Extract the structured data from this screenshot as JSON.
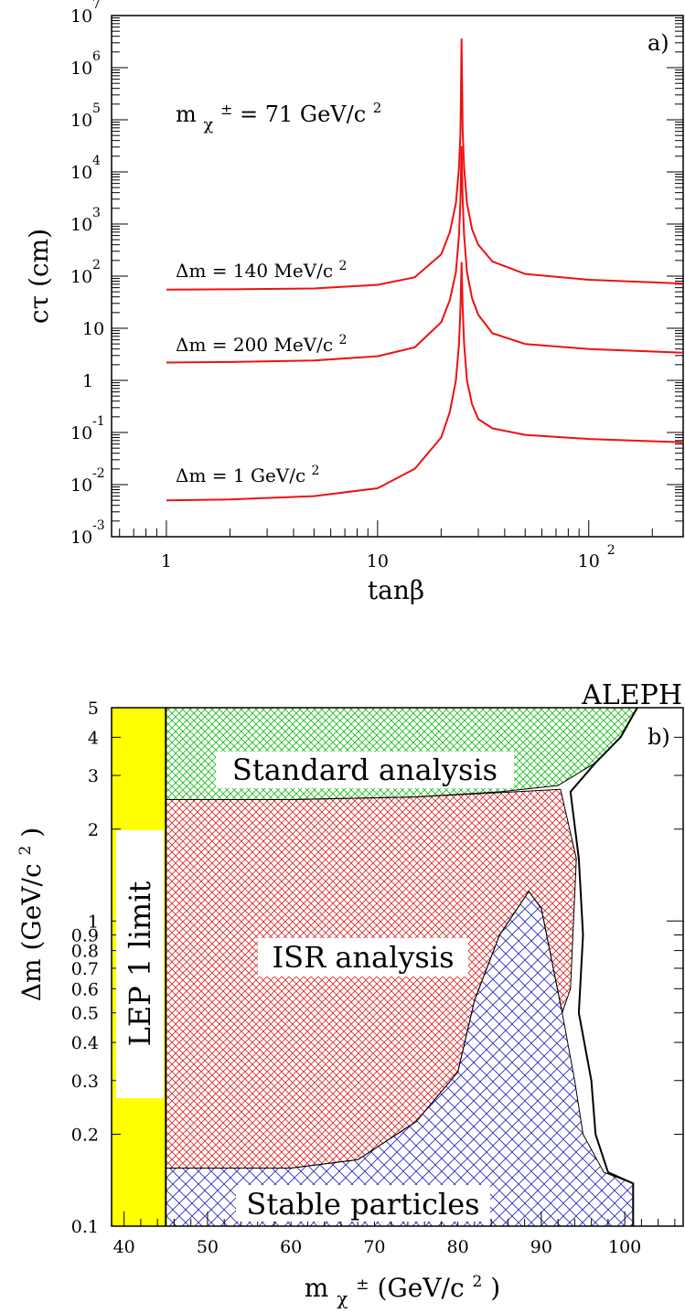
{
  "chart_data": [
    {
      "type": "line",
      "panel_label": "a)",
      "xscale": "log",
      "yscale": "log",
      "xlim": [
        0.55,
        280
      ],
      "ylim": [
        0.001,
        10000000
      ],
      "xlabel": "tanβ",
      "ylabel": "cτ (cm)",
      "x_ticks": [
        {
          "value": 1,
          "base": "1",
          "exp": ""
        },
        {
          "value": 10,
          "base": "10",
          "exp": ""
        },
        {
          "value": 100,
          "base": "10",
          "exp": "2"
        }
      ],
      "y_ticks": [
        {
          "value": 0.001,
          "base": "10",
          "exp": "-3"
        },
        {
          "value": 0.01,
          "base": "10",
          "exp": "-2"
        },
        {
          "value": 0.1,
          "base": "10",
          "exp": "-1"
        },
        {
          "value": 1,
          "base": "1",
          "exp": ""
        },
        {
          "value": 10,
          "base": "10",
          "exp": ""
        },
        {
          "value": 100,
          "base": "10",
          "exp": "2"
        },
        {
          "value": 1000,
          "base": "10",
          "exp": "3"
        },
        {
          "value": 10000,
          "base": "10",
          "exp": "4"
        },
        {
          "value": 100000,
          "base": "10",
          "exp": "5"
        },
        {
          "value": 1000000,
          "base": "10",
          "exp": "6"
        },
        {
          "value": 10000000,
          "base": "10",
          "exp": "7"
        }
      ],
      "mass_annotation": {
        "prefix": "m",
        "sub": "χ",
        "sup": "±",
        "text": "= 71 GeV/c",
        "exp": "2"
      },
      "line_color": "#ee1111",
      "peak_x": 25,
      "series": [
        {
          "label_text": "Δm = 140 MeV/c",
          "label_exp": "2",
          "x": [
            1,
            2,
            5,
            10,
            15,
            20,
            22,
            23.5,
            24.3,
            24.7,
            25,
            25.3,
            25.7,
            26.5,
            28,
            30,
            35,
            50,
            100,
            280
          ],
          "y": [
            55,
            56,
            58,
            68,
            95,
            260,
            700,
            2500,
            12000,
            60000,
            3500000,
            60000,
            12000,
            2500,
            800,
            400,
            190,
            110,
            85,
            72
          ]
        },
        {
          "label_text": "Δm = 200 MeV/c",
          "label_exp": "2",
          "x": [
            1,
            2,
            5,
            10,
            15,
            20,
            22,
            23.5,
            24.3,
            24.7,
            25,
            25.3,
            25.7,
            26.5,
            28,
            30,
            35,
            50,
            100,
            280
          ],
          "y": [
            2.2,
            2.25,
            2.4,
            2.9,
            4.3,
            13,
            35,
            120,
            600,
            3000,
            30000,
            3000,
            600,
            120,
            38,
            18,
            8,
            5,
            4,
            3.4
          ]
        },
        {
          "label_text": "Δm = 1 GeV/c",
          "label_exp": "2",
          "x": [
            1,
            2,
            5,
            10,
            15,
            20,
            22,
            23.5,
            24.3,
            24.7,
            25,
            25.3,
            25.7,
            26.5,
            28,
            30,
            35,
            50,
            100,
            280
          ],
          "y": [
            0.005,
            0.0052,
            0.006,
            0.0085,
            0.02,
            0.08,
            0.25,
            1,
            5,
            25,
            180,
            25,
            5,
            1,
            0.35,
            0.18,
            0.12,
            0.09,
            0.075,
            0.065
          ]
        }
      ]
    },
    {
      "type": "area",
      "panel_label": "b)",
      "experiment_label": "ALEPH",
      "yscale": "log",
      "xlim": [
        38.5,
        107
      ],
      "ylim": [
        0.1,
        5
      ],
      "xlabel_prefix": "m",
      "xlabel_sub": "χ",
      "xlabel_sup": "±",
      "xlabel_text": "(GeV/c",
      "xlabel_exp": "2",
      "xlabel_close": ")",
      "ylabel_text": "Δm (GeV/c",
      "ylabel_exp": "2",
      "ylabel_close": ")",
      "x_ticks": [
        40,
        50,
        60,
        70,
        80,
        90,
        100
      ],
      "y_ticks": [
        {
          "value": 0.1,
          "label": "0.1"
        },
        {
          "value": 0.2,
          "label": "0.2"
        },
        {
          "value": 0.3,
          "label": "0.3"
        },
        {
          "value": 0.4,
          "label": "0.4"
        },
        {
          "value": 0.5,
          "label": "0.5"
        },
        {
          "value": 0.6,
          "label": "0.6"
        },
        {
          "value": 0.7,
          "label": "0.7"
        },
        {
          "value": 0.8,
          "label": "0.8"
        },
        {
          "value": 0.9,
          "label": "0.9"
        },
        {
          "value": 1,
          "label": "1"
        },
        {
          "value": 2,
          "label": "2"
        },
        {
          "value": 3,
          "label": "3"
        },
        {
          "value": 4,
          "label": "4"
        },
        {
          "value": 5,
          "label": "5"
        }
      ],
      "regions": [
        {
          "name": "LEP 1 limit",
          "color": "#ffff00",
          "hatch": "none",
          "points": [
            [
              38.5,
              0.1
            ],
            [
              45,
              0.1
            ],
            [
              45,
              5
            ],
            [
              38.5,
              5
            ]
          ]
        },
        {
          "name": "Standard analysis",
          "color": "#11bb11",
          "hatch": "cross",
          "points": [
            [
              45,
              2.5
            ],
            [
              60,
              2.5
            ],
            [
              75,
              2.55
            ],
            [
              85,
              2.65
            ],
            [
              92,
              2.78
            ],
            [
              96.5,
              3.3
            ],
            [
              99.5,
              4.0
            ],
            [
              101.5,
              5
            ],
            [
              45,
              5
            ]
          ]
        },
        {
          "name": "ISR analysis",
          "color": "#dd2222",
          "hatch": "cross",
          "points": [
            [
              45,
              0.155
            ],
            [
              60,
              0.155
            ],
            [
              68,
              0.165
            ],
            [
              75,
              0.22
            ],
            [
              80,
              0.32
            ],
            [
              82,
              0.55
            ],
            [
              85,
              0.9
            ],
            [
              88.5,
              1.25
            ],
            [
              90,
              1.1
            ],
            [
              92.5,
              0.5
            ],
            [
              93.5,
              0.6
            ],
            [
              94.2,
              1.6
            ],
            [
              92.3,
              2.7
            ],
            [
              75,
              2.55
            ],
            [
              60,
              2.5
            ],
            [
              45,
              2.5
            ]
          ]
        },
        {
          "name": "Stable particles",
          "color": "#2222bb",
          "hatch": "cross",
          "points": [
            [
              45,
              0.1
            ],
            [
              101,
              0.1
            ],
            [
              101,
              0.138
            ],
            [
              97.5,
              0.15
            ],
            [
              95,
              0.2
            ],
            [
              94,
              0.3
            ],
            [
              92.5,
              0.5
            ],
            [
              90,
              1.1
            ],
            [
              88.5,
              1.25
            ],
            [
              85,
              0.9
            ],
            [
              82,
              0.55
            ],
            [
              80,
              0.32
            ],
            [
              75,
              0.22
            ],
            [
              68,
              0.165
            ],
            [
              60,
              0.155
            ],
            [
              45,
              0.155
            ]
          ]
        }
      ],
      "boundary": [
        [
          101.5,
          5
        ],
        [
          99.5,
          4.0
        ],
        [
          96.5,
          3.3
        ],
        [
          93.5,
          2.65
        ],
        [
          94.5,
          1.6
        ],
        [
          95,
          0.9
        ],
        [
          94.5,
          0.5
        ],
        [
          96,
          0.3
        ],
        [
          96.5,
          0.2
        ],
        [
          98,
          0.15
        ],
        [
          101,
          0.138
        ],
        [
          101,
          0.1
        ]
      ]
    }
  ]
}
